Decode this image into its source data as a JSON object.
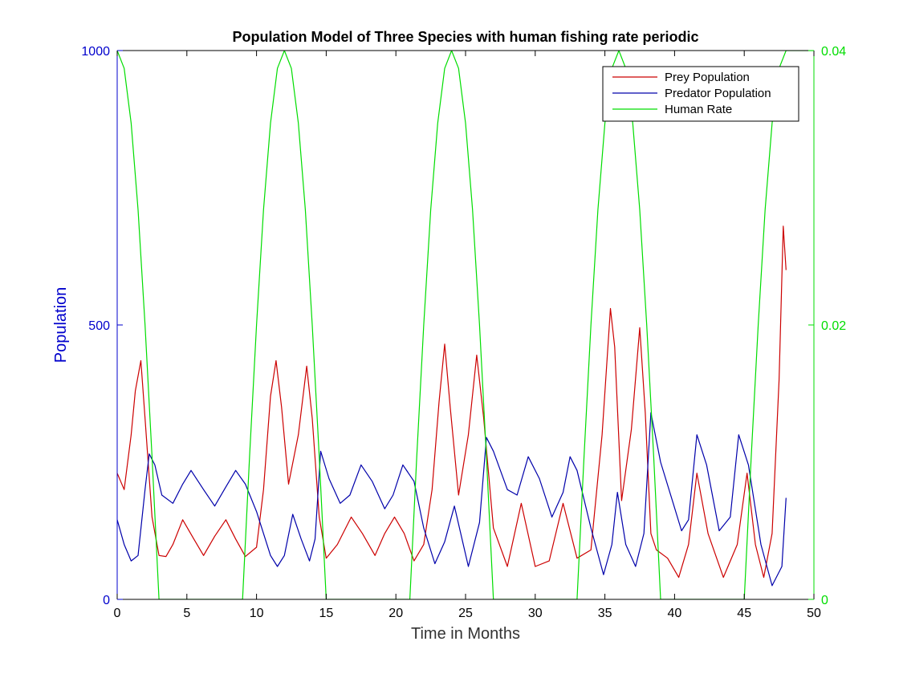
{
  "chart_data": {
    "type": "line",
    "title": "Population Model of Three Species with human fishing rate periodic",
    "xlabel": "Time in Months",
    "ylabel_left": "Population",
    "ylabel_right": "",
    "xlim": [
      0,
      50
    ],
    "ylim_left": [
      0,
      1000
    ],
    "ylim_right": [
      0,
      0.04
    ],
    "x_ticks": [
      0,
      5,
      10,
      15,
      20,
      25,
      30,
      35,
      40,
      45,
      50
    ],
    "y_left_ticks": [
      0,
      500,
      1000
    ],
    "y_right_ticks": [
      0,
      0.02,
      0.04
    ],
    "grid": false,
    "legend_position": "top-right",
    "colors": {
      "left_axis": "#0000cc",
      "right_axis": "#00dd00",
      "prey": "#cc0000",
      "predator": "#0000aa",
      "human": "#00dd00"
    },
    "series": [
      {
        "name": "Prey Population",
        "axis": "left",
        "color": "#cc0000",
        "x": [
          0,
          0.5,
          1.0,
          1.3,
          1.7,
          2.0,
          2.5,
          3.0,
          3.5,
          4.0,
          4.7,
          5.5,
          6.2,
          7.0,
          7.8,
          8.5,
          9.2,
          10.0,
          10.5,
          11.0,
          11.4,
          11.8,
          12.3,
          13.0,
          13.6,
          14.0,
          14.5,
          15.0,
          15.8,
          16.8,
          17.6,
          18.5,
          19.2,
          19.9,
          20.6,
          21.3,
          22.0,
          22.6,
          23.1,
          23.5,
          23.9,
          24.5,
          25.2,
          25.8,
          26.3,
          27.0,
          28.0,
          29.0,
          30.0,
          31.0,
          32.0,
          33.0,
          34.0,
          34.8,
          35.4,
          35.7,
          36.2,
          36.9,
          37.5,
          37.9,
          38.3,
          38.7,
          39.5,
          40.3,
          41.0,
          41.6,
          42.4,
          43.5,
          44.5,
          45.2,
          45.8,
          46.4,
          47.0,
          47.5,
          47.8,
          48.0
        ],
        "values": [
          230,
          200,
          300,
          380,
          435,
          330,
          150,
          80,
          78,
          100,
          145,
          110,
          80,
          115,
          145,
          110,
          78,
          95,
          200,
          370,
          435,
          350,
          210,
          300,
          425,
          330,
          150,
          75,
          100,
          150,
          120,
          80,
          120,
          150,
          120,
          70,
          100,
          200,
          360,
          465,
          350,
          190,
          300,
          445,
          330,
          130,
          60,
          175,
          60,
          70,
          175,
          75,
          90,
          300,
          530,
          460,
          180,
          310,
          495,
          340,
          120,
          90,
          75,
          40,
          100,
          230,
          120,
          40,
          100,
          230,
          100,
          40,
          120,
          400,
          680,
          600
        ]
      },
      {
        "name": "Predator Population",
        "axis": "left",
        "color": "#0000aa",
        "x": [
          0,
          0.5,
          1.0,
          1.5,
          2.0,
          2.3,
          2.7,
          3.2,
          4.0,
          4.7,
          5.3,
          6.2,
          7.0,
          7.8,
          8.5,
          9.2,
          10.0,
          11.0,
          11.5,
          12.0,
          12.6,
          13.2,
          13.8,
          14.2,
          14.6,
          15.2,
          16.0,
          16.7,
          17.5,
          18.3,
          19.2,
          19.8,
          20.5,
          21.3,
          22.0,
          22.8,
          23.5,
          24.2,
          25.2,
          26.0,
          26.5,
          27.0,
          28.0,
          28.7,
          29.5,
          30.3,
          31.2,
          32.0,
          32.5,
          33.0,
          34.0,
          34.9,
          35.5,
          35.9,
          36.5,
          37.2,
          37.8,
          38.3,
          39.0,
          39.9,
          40.5,
          41.0,
          41.6,
          42.3,
          43.2,
          44.0,
          44.6,
          45.3,
          46.2,
          47.0,
          47.7,
          48.0
        ],
        "values": [
          145,
          100,
          70,
          80,
          200,
          265,
          245,
          190,
          175,
          210,
          235,
          200,
          170,
          205,
          235,
          210,
          160,
          80,
          60,
          80,
          155,
          110,
          70,
          110,
          270,
          220,
          175,
          190,
          245,
          215,
          165,
          190,
          245,
          215,
          130,
          65,
          105,
          170,
          60,
          140,
          295,
          270,
          200,
          190,
          260,
          220,
          150,
          195,
          260,
          235,
          130,
          45,
          100,
          195,
          100,
          60,
          120,
          340,
          250,
          175,
          125,
          145,
          300,
          245,
          125,
          150,
          300,
          245,
          100,
          25,
          60,
          185
        ]
      },
      {
        "name": "Human Rate",
        "axis": "right",
        "color": "#00dd00",
        "x": [
          0,
          0.5,
          1.0,
          1.5,
          2.0,
          2.5,
          3.0,
          9.0,
          9.5,
          10.0,
          10.5,
          11.0,
          11.5,
          12.0,
          12.5,
          13.0,
          13.5,
          14.0,
          14.5,
          15.0,
          21.0,
          21.5,
          22.0,
          22.5,
          23.0,
          23.5,
          24.0,
          24.5,
          25.0,
          25.5,
          26.0,
          26.5,
          27.0,
          33.0,
          33.5,
          34.0,
          34.5,
          35.0,
          35.5,
          36.0,
          36.5,
          37.0,
          37.5,
          38.0,
          38.5,
          39.0,
          45.0,
          45.5,
          46.0,
          46.5,
          47.0,
          47.5,
          48.0,
          50.0
        ],
        "values": [
          0.04,
          0.0387,
          0.0347,
          0.0284,
          0.02,
          0.0104,
          0.0,
          0.0,
          0.0104,
          0.02,
          0.0284,
          0.0347,
          0.0387,
          0.04,
          0.0387,
          0.0347,
          0.0284,
          0.02,
          0.0104,
          0.0,
          0.0,
          0.0104,
          0.02,
          0.0284,
          0.0347,
          0.0387,
          0.04,
          0.0387,
          0.0347,
          0.0284,
          0.02,
          0.0104,
          0.0,
          0.0,
          0.0104,
          0.02,
          0.0284,
          0.0347,
          0.0387,
          0.04,
          0.0387,
          0.0347,
          0.0284,
          0.02,
          0.0104,
          0.0,
          0.0,
          0.0104,
          0.02,
          0.0284,
          0.0347,
          0.0387,
          0.04,
          0.04
        ]
      }
    ]
  }
}
